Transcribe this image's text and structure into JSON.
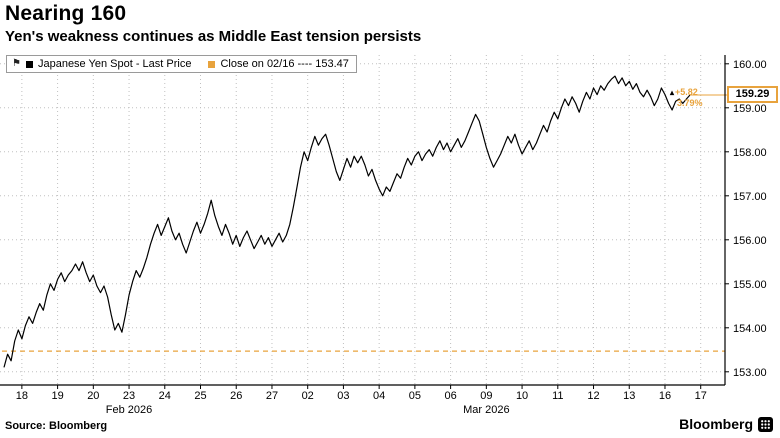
{
  "header": {
    "title": "Nearing 160",
    "subtitle": "Yen's weakness continues as Middle East tension persists"
  },
  "legend": {
    "series1_label": "Japanese Yen Spot - Last Price",
    "series2_label": "Close on 02/16 ---- 153.47"
  },
  "annotations": {
    "last_price": "159.29",
    "change": "+5.82",
    "change_pct": "3.79%"
  },
  "icons": {
    "flag": "⚑",
    "up_arrow": "▴"
  },
  "colors": {
    "orange": "#E8A33D",
    "line_black": "#000000",
    "grid_gray": "#c0c0c0",
    "axis_black": "#000000"
  },
  "footer": {
    "source": "Source: Bloomberg",
    "brand": "Bloomberg"
  },
  "chart_data": {
    "type": "line",
    "title": "Nearing 160",
    "subtitle": "Yen's weakness continues as Middle East tension persists",
    "series_name": "Japanese Yen Spot - Last Price",
    "ylim": [
      152.7,
      160.2
    ],
    "yticks": [
      153,
      154,
      155,
      156,
      157,
      158,
      159,
      160
    ],
    "ytick_labels": [
      "153.00",
      "154.00",
      "155.00",
      "156.00",
      "157.00",
      "158.00",
      "159.00",
      "160.00"
    ],
    "x_day_labels": [
      "18",
      "19",
      "20",
      "23",
      "24",
      "25",
      "26",
      "27",
      "02",
      "03",
      "04",
      "05",
      "06",
      "09",
      "10",
      "11",
      "12",
      "13",
      "16",
      "17"
    ],
    "month_labels": [
      {
        "label": "Feb 2026",
        "day_index": 3
      },
      {
        "label": "Mar 2026",
        "day_index": 13
      }
    ],
    "close_line_value": 153.47,
    "last_price": 159.29,
    "change": 5.82,
    "change_pct": 3.79,
    "points_per_day": 10,
    "total_slots": 200,
    "grid": true,
    "legend_position": "top-left",
    "values": [
      153.1,
      153.4,
      153.25,
      153.7,
      153.95,
      153.75,
      154.05,
      154.25,
      154.1,
      154.35,
      154.55,
      154.4,
      154.75,
      155.0,
      154.85,
      155.1,
      155.25,
      155.05,
      155.2,
      155.3,
      155.45,
      155.3,
      155.5,
      155.25,
      155.05,
      155.2,
      154.95,
      154.8,
      154.95,
      154.7,
      154.3,
      153.95,
      154.1,
      153.9,
      154.3,
      154.75,
      155.05,
      155.3,
      155.15,
      155.35,
      155.6,
      155.9,
      156.15,
      156.35,
      156.1,
      156.3,
      156.5,
      156.2,
      156.0,
      156.15,
      155.9,
      155.7,
      155.95,
      156.2,
      156.4,
      156.15,
      156.35,
      156.6,
      156.9,
      156.55,
      156.3,
      156.1,
      156.35,
      156.15,
      155.9,
      156.1,
      155.85,
      156.05,
      156.2,
      156.0,
      155.8,
      155.95,
      156.1,
      155.9,
      156.05,
      155.85,
      156.0,
      156.15,
      155.95,
      156.1,
      156.35,
      156.75,
      157.2,
      157.65,
      158.0,
      157.8,
      158.1,
      158.35,
      158.15,
      158.3,
      158.4,
      158.15,
      157.85,
      157.55,
      157.35,
      157.6,
      157.85,
      157.65,
      157.9,
      157.75,
      157.9,
      157.7,
      157.45,
      157.6,
      157.35,
      157.15,
      157.0,
      157.2,
      157.1,
      157.3,
      157.5,
      157.4,
      157.65,
      157.85,
      157.7,
      157.9,
      158.0,
      157.8,
      157.95,
      158.05,
      157.9,
      158.1,
      158.25,
      158.05,
      158.2,
      158.0,
      158.15,
      158.3,
      158.1,
      158.25,
      158.45,
      158.65,
      158.85,
      158.7,
      158.4,
      158.1,
      157.85,
      157.65,
      157.8,
      157.95,
      158.15,
      158.35,
      158.2,
      158.4,
      158.15,
      157.95,
      158.1,
      158.25,
      158.05,
      158.2,
      158.4,
      158.6,
      158.45,
      158.7,
      158.9,
      158.75,
      159.0,
      159.2,
      159.05,
      159.25,
      159.1,
      158.9,
      159.15,
      159.35,
      159.2,
      159.45,
      159.3,
      159.5,
      159.4,
      159.55,
      159.65,
      159.72,
      159.55,
      159.68,
      159.5,
      159.6,
      159.42,
      159.55,
      159.35,
      159.25,
      159.4,
      159.25,
      159.05,
      159.2,
      159.45,
      159.3,
      159.1,
      158.95,
      159.15,
      159.2,
      159.1,
      159.2,
      159.29
    ]
  }
}
